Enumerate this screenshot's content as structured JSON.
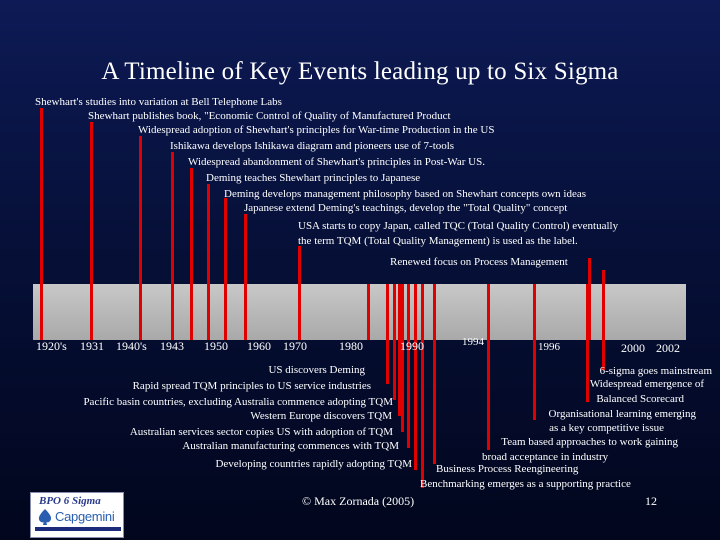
{
  "title": "A Timeline of Key Events leading up to Six Sigma",
  "top_events": [
    "Shewhart's studies into variation at Bell Telephone Labs",
    "Shewhart publishes book, \"Economic Control of Quality of Manufactured Product",
    "Widespread adoption of Shewhart's principles for War-time Production in the US",
    "Ishikawa develops Ishikawa diagram and pioneers use of 7-tools",
    "Widespread abandonment of Shewhart's principles in Post-War US.",
    "Deming teaches Shewhart principles to Japanese",
    "Deming develops management philosophy based on Shewhart concepts own ideas",
    "Japanese extend Deming's teachings, develop the \"Total Quality\" concept",
    "USA starts to copy Japan, called TQC (Total Quality Control) eventually",
    "the term TQM (Total Quality Management) is used as the label.",
    "Renewed focus on Process Management"
  ],
  "years": [
    "1920's",
    "1931",
    "1940's",
    "1943",
    "1950",
    "1960",
    "1970",
    "1980",
    "1990",
    "1994",
    "1996",
    "2000",
    "2002"
  ],
  "left_events": [
    "US discovers Deming",
    "Rapid spread TQM principles to US service industries",
    "Pacific basin countries, excluding Australia commence adopting TQM",
    "Western Europe discovers TQM",
    "Australian services sector copies US with adoption of TQM",
    "Australian manufacturing commences with TQM",
    "Developing countries rapidly adopting TQM"
  ],
  "right_events": [
    "6-sigma goes mainstream",
    "Widespread emergence of",
    "Balanced Scorecard",
    "Organisational learning emerging",
    "as a key competitive issue",
    "Team based approaches to work gaining",
    "broad acceptance in industry",
    "Business Process Reengineering",
    "Benchmarking emerges as a supporting practice"
  ],
  "logo": {
    "line1": "BPO 6 Sigma",
    "line2": "Capgemini"
  },
  "copyright": "© Max Zornada (2005)",
  "page_number": "12",
  "colors": {
    "marker": "#e00000",
    "band": "#b8b8b8",
    "background": "#061038"
  }
}
